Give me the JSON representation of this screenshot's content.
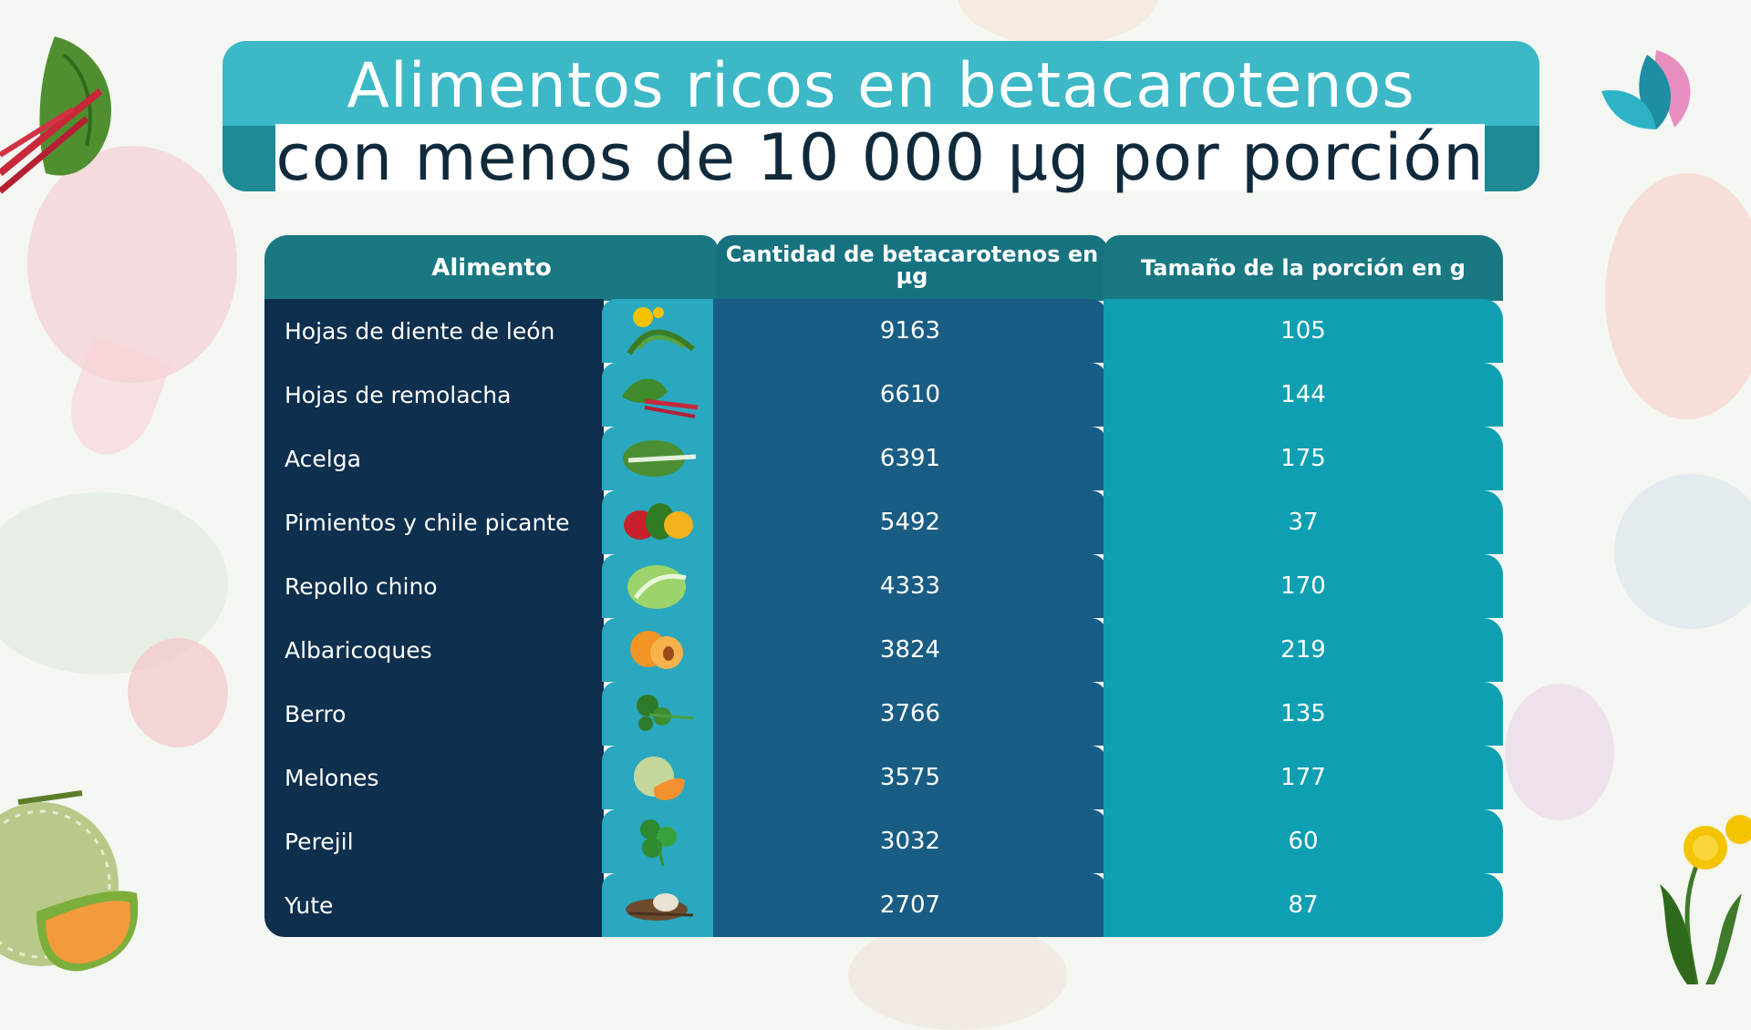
{
  "title": {
    "line1": "Alimentos ricos en betacarotenos",
    "line2": "con menos de 10 000 µg por porción"
  },
  "table": {
    "headers": {
      "food": "Alimento",
      "amount": "Cantidad de betacarotenos en µg",
      "portion": "Tamaño de la porción en g"
    },
    "rows": [
      {
        "food": "Hojas de diente de león",
        "amount": "9163",
        "portion": "105",
        "icon": "dandelion-leaves-icon"
      },
      {
        "food": "Hojas de remolacha",
        "amount": "6610",
        "portion": "144",
        "icon": "beet-greens-icon"
      },
      {
        "food": "Acelga",
        "amount": "6391",
        "portion": "175",
        "icon": "chard-icon"
      },
      {
        "food": "Pimientos y chile picante",
        "amount": "5492",
        "portion": "37",
        "icon": "peppers-icon"
      },
      {
        "food": "Repollo chino",
        "amount": "4333",
        "portion": "170",
        "icon": "chinese-cabbage-icon"
      },
      {
        "food": "Albaricoques",
        "amount": "3824",
        "portion": "219",
        "icon": "apricot-icon"
      },
      {
        "food": "Berro",
        "amount": "3766",
        "portion": "135",
        "icon": "watercress-icon"
      },
      {
        "food": "Melones",
        "amount": "3575",
        "portion": "177",
        "icon": "melon-icon"
      },
      {
        "food": "Perejil",
        "amount": "3032",
        "portion": "60",
        "icon": "parsley-icon"
      },
      {
        "food": "Yute",
        "amount": "2707",
        "portion": "87",
        "icon": "jute-icon"
      }
    ]
  },
  "colors": {
    "title_bar": "#3cb8c6",
    "name_column": "#0e2f4d",
    "amount_column": "#1a5d84",
    "portion_column": "#0f9fb3"
  }
}
